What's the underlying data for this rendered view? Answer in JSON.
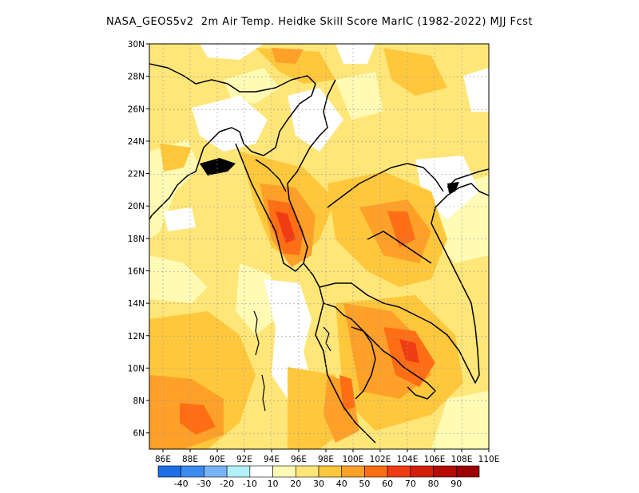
{
  "title": "NASA_GEOS5v2  2m Air Temp. Heidke Skill Score MarIC (1982-2022) MJJ Fcst",
  "lat_ticks": [
    "30N",
    "28N",
    "26N",
    "24N",
    "22N",
    "20N",
    "18N",
    "16N",
    "14N",
    "12N",
    "10N",
    "8N",
    "6N"
  ],
  "lon_ticks": [
    "86E",
    "88E",
    "90E",
    "92E",
    "94E",
    "96E",
    "98E",
    "100E",
    "102E",
    "104E",
    "106E",
    "108E",
    "110E"
  ],
  "extent": {
    "lon": [
      85,
      110
    ],
    "lat": [
      5,
      30
    ]
  },
  "colorbar": {
    "labels": [
      "-40",
      "-30",
      "-20",
      "-10",
      "10",
      "20",
      "30",
      "40",
      "50",
      "60",
      "70",
      "80",
      "90"
    ],
    "colors": [
      "#1e6ee6",
      "#3c8cf0",
      "#78b4f5",
      "#b4f0fa",
      "#ffffff",
      "#fffab4",
      "#ffe678",
      "#ffc83c",
      "#ffa028",
      "#ff6e14",
      "#f03c14",
      "#d21e0a",
      "#b40a00",
      "#9a0000"
    ]
  },
  "color_classes": {
    "blank": "#ffffff",
    "c10": "#fffab4",
    "c20": "#ffe678",
    "c30": "#ffc83c",
    "c40": "#ffa028",
    "c50": "#ff6e14",
    "c60": "#f03c14",
    "c70": "#d21e0a"
  }
}
